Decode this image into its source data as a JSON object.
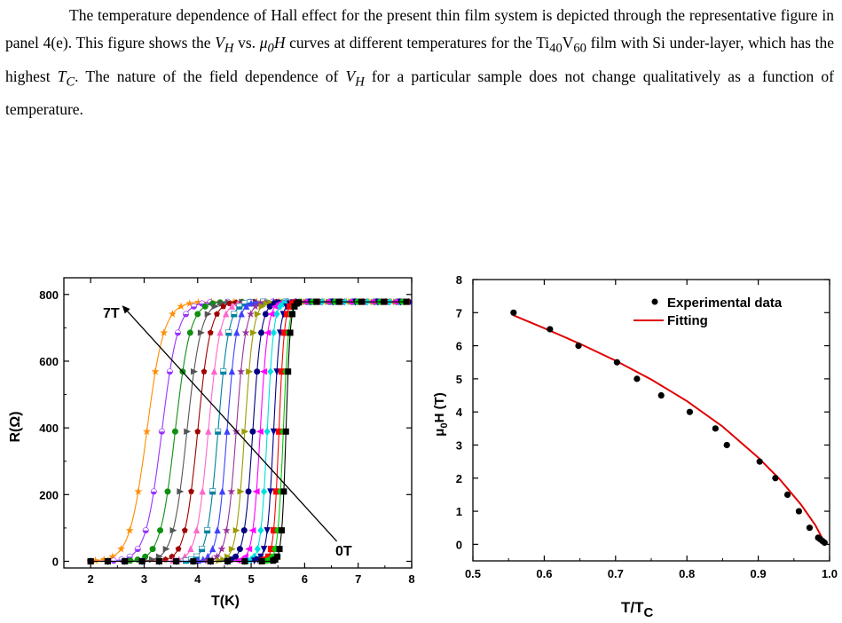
{
  "paragraph": {
    "seg1": "The temperature dependence of Hall effect for the present thin film system is depicted through the representative figure in panel 4(e). This figure shows the ",
    "vh1_v": "V",
    "vh1_sub": "H",
    "seg2": " vs. ",
    "mu_mu": "μ",
    "mu_sub": "0",
    "mu_h": "H",
    "seg3": " curves at different temperatures for the Ti",
    "ti_sub": "40",
    "seg4": "V",
    "v_sub": "60",
    "seg5": " film with Si under-layer, which has the highest ",
    "tc_t": "T",
    "tc_sub": "C",
    "seg6": ". The nature of the field dependence of ",
    "vh2_v": "V",
    "vh2_sub": "H",
    "seg7": " for a particular sample does not change qualitatively as a function of temperature."
  },
  "chart_data": [
    {
      "type": "line",
      "xlabel": "T(K)",
      "ylabel": "R(Ω)",
      "xlim": [
        1.5,
        8
      ],
      "ylim": [
        -20,
        850
      ],
      "xticks": [
        "2",
        "3",
        "4",
        "5",
        "6",
        "7",
        "8"
      ],
      "yticks": [
        "0",
        "200",
        "400",
        "600",
        "800"
      ],
      "grid": false,
      "annotations": {
        "high_field": "7T",
        "low_field": "0T"
      },
      "arrow": {
        "from": [
          6.6,
          60
        ],
        "to": [
          2.6,
          765
        ]
      },
      "r_normal": 778,
      "r_residual": 0,
      "series": [
        {
          "transition_K": 3.05,
          "width_K": 0.16,
          "color": "#ff8c00",
          "marker": "star"
        },
        {
          "transition_K": 3.33,
          "width_K": 0.15,
          "color": "#9933ff",
          "marker": "half-circle"
        },
        {
          "transition_K": 3.58,
          "width_K": 0.14,
          "color": "#109010",
          "marker": "circle"
        },
        {
          "transition_K": 3.8,
          "width_K": 0.13,
          "color": "#555555",
          "marker": "triangle-right"
        },
        {
          "transition_K": 4.0,
          "width_K": 0.12,
          "color": "#a00000",
          "marker": "pentagon"
        },
        {
          "transition_K": 4.2,
          "width_K": 0.11,
          "color": "#ff66cc",
          "marker": "triangle-up"
        },
        {
          "transition_K": 4.38,
          "width_K": 0.1,
          "color": "#0080a0",
          "marker": "half-square"
        },
        {
          "transition_K": 4.55,
          "width_K": 0.09,
          "color": "#4040ff",
          "marker": "triangle-up"
        },
        {
          "transition_K": 4.72,
          "width_K": 0.09,
          "color": "#993399",
          "marker": "star"
        },
        {
          "transition_K": 4.88,
          "width_K": 0.08,
          "color": "#9b9b00",
          "marker": "triangle-right"
        },
        {
          "transition_K": 5.03,
          "width_K": 0.08,
          "color": "#000080",
          "marker": "circle"
        },
        {
          "transition_K": 5.17,
          "width_K": 0.07,
          "color": "#ff00ff",
          "marker": "triangle-left"
        },
        {
          "transition_K": 5.3,
          "width_K": 0.06,
          "color": "#00e0e0",
          "marker": "diamond"
        },
        {
          "transition_K": 5.42,
          "width_K": 0.06,
          "color": "#000090",
          "marker": "triangle-down"
        },
        {
          "transition_K": 5.52,
          "width_K": 0.05,
          "color": "#ff0000",
          "marker": "square"
        },
        {
          "transition_K": 5.6,
          "width_K": 0.05,
          "color": "#00cc00",
          "marker": "circle"
        },
        {
          "transition_K": 5.65,
          "width_K": 0.04,
          "color": "#000000",
          "marker": "square"
        }
      ]
    },
    {
      "type": "scatter",
      "xlabel_main": "T/T",
      "xlabel_sub": "C",
      "ylabel_mu": "μ",
      "ylabel_sub": "0",
      "ylabel_rest": "H (T)",
      "xlim": [
        0.5,
        1.0
      ],
      "ylim": [
        -0.5,
        8
      ],
      "xticks": [
        "0.5",
        "0.6",
        "0.7",
        "0.8",
        "0.9",
        "1.0"
      ],
      "yticks": [
        "0",
        "1",
        "2",
        "3",
        "4",
        "5",
        "6",
        "7",
        "8"
      ],
      "grid": false,
      "legend_position": "top-right",
      "series": [
        {
          "name": "Experimental data",
          "color": "#000000",
          "x": [
            0.557,
            0.608,
            0.648,
            0.702,
            0.73,
            0.764,
            0.804,
            0.84,
            0.856,
            0.902,
            0.924,
            0.941,
            0.957,
            0.972,
            0.984,
            0.987,
            0.99,
            0.993
          ],
          "y": [
            7.0,
            6.5,
            6.0,
            5.5,
            5.0,
            4.5,
            4.0,
            3.5,
            3.0,
            2.5,
            2.0,
            1.5,
            1.0,
            0.5,
            0.2,
            0.15,
            0.1,
            0.05
          ]
        },
        {
          "name": "Fitting",
          "color": "#e00000",
          "x": [
            0.557,
            0.6,
            0.65,
            0.7,
            0.75,
            0.8,
            0.85,
            0.9,
            0.93,
            0.96,
            0.98,
            0.993
          ],
          "y": [
            6.92,
            6.53,
            6.06,
            5.55,
            4.98,
            4.33,
            3.56,
            2.62,
            1.97,
            1.2,
            0.58,
            0.05
          ]
        }
      ]
    }
  ]
}
